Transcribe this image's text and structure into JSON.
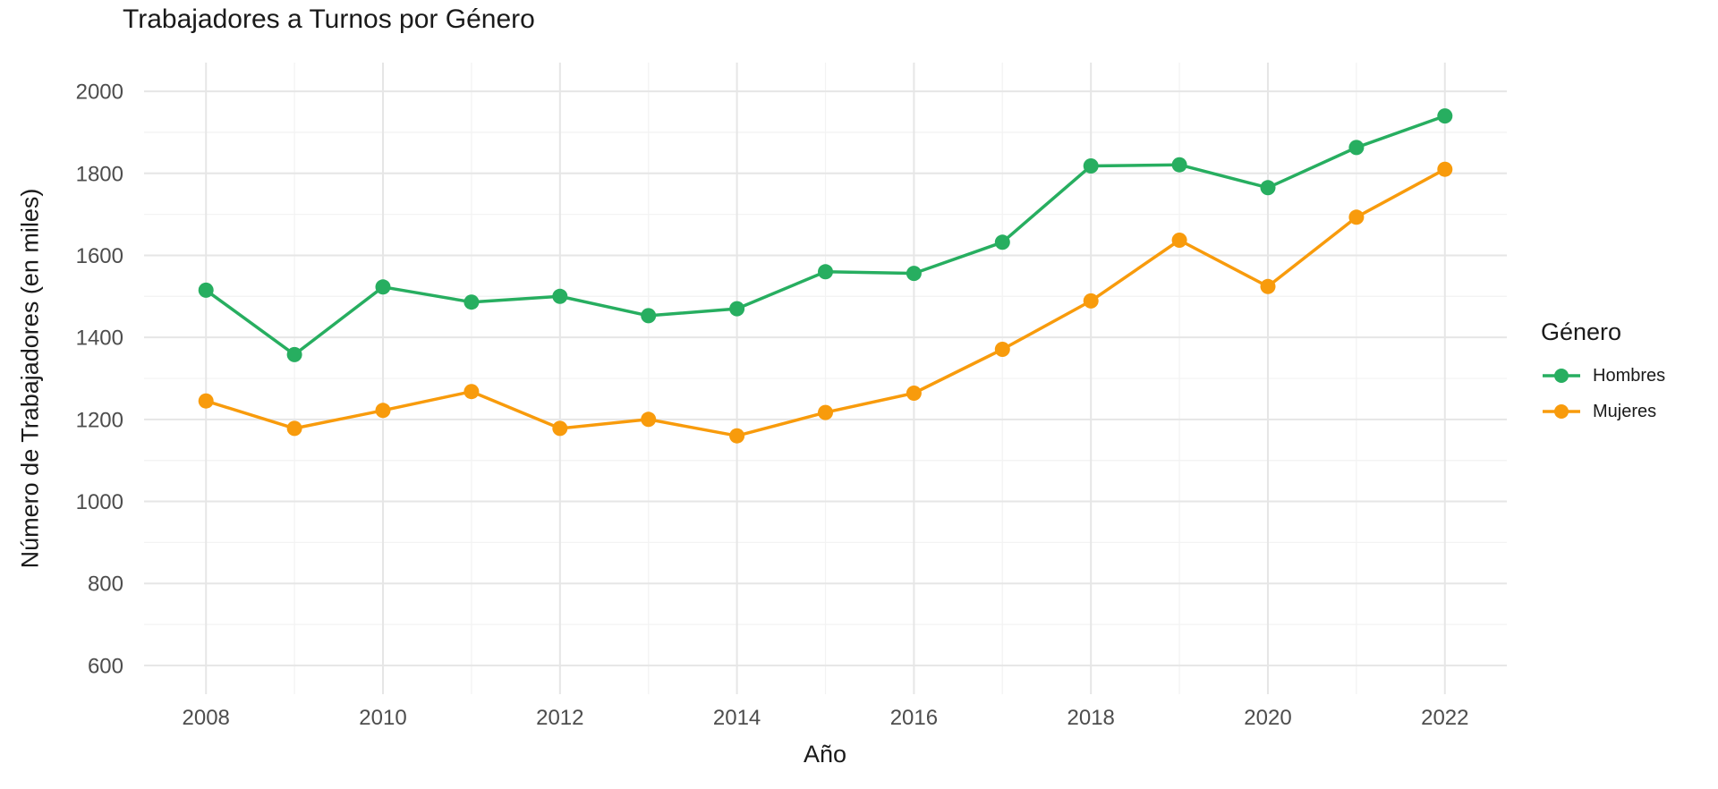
{
  "chart_data": {
    "type": "line",
    "title": "Trabajadores a Turnos por Género",
    "xlabel": "Año",
    "ylabel": "Número de Trabajadores (en miles)",
    "legend_title": "Género",
    "legend_position": "right",
    "grid": "major-and-minor",
    "background": "#ffffff",
    "x": [
      2008,
      2009,
      2010,
      2011,
      2012,
      2013,
      2014,
      2015,
      2016,
      2017,
      2018,
      2019,
      2020,
      2021,
      2022
    ],
    "series": [
      {
        "name": "Hombres",
        "color": "#27ae60",
        "values": [
          1515,
          1358,
          1523,
          1486,
          1500,
          1453,
          1470,
          1560,
          1556,
          1632,
          1818,
          1821,
          1765,
          1863,
          1940
        ]
      },
      {
        "name": "Mujeres",
        "color": "#f89b0c",
        "values": [
          1245,
          1178,
          1222,
          1268,
          1178,
          1200,
          1160,
          1217,
          1264,
          1371,
          1489,
          1637,
          1524,
          1693,
          1810
        ]
      }
    ],
    "x_ticks": [
      2008,
      2010,
      2012,
      2014,
      2016,
      2018,
      2020,
      2022
    ],
    "x_minor_ticks": [
      2009,
      2011,
      2013,
      2015,
      2017,
      2019,
      2021
    ],
    "y_ticks": [
      2000,
      1800,
      1600,
      1400,
      1200,
      1000,
      800,
      600
    ],
    "y_minor_ticks": [
      1900,
      1700,
      1500,
      1300,
      1100,
      900,
      700
    ],
    "x_range": [
      2008,
      2022
    ],
    "ylim": [
      600,
      2000
    ],
    "x_domain": [
      2007.3,
      2022.7
    ],
    "y_domain": [
      530,
      2070
    ],
    "colors": {
      "grid_major": "#e6e6e6",
      "grid_minor": "#f3f3f3",
      "tick_text": "#4d4d4d",
      "title_text": "#1a1a1a"
    }
  }
}
